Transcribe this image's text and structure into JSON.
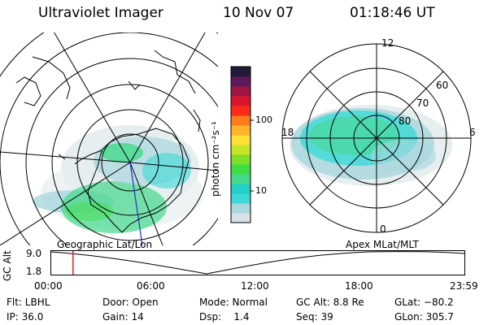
{
  "header": {
    "instrument": "Ultraviolet Imager",
    "date": "10 Nov 07",
    "time": "01:18:46 UT"
  },
  "colorbar": {
    "label": "photon cm⁻²s⁻¹",
    "ticks": [
      "100",
      "10"
    ],
    "colors": [
      "#d8e2e6",
      "#a9d7dd",
      "#3cd9d6",
      "#24cfc8",
      "#43d98a",
      "#3fdd44",
      "#7fe02a",
      "#c6e62b",
      "#ffe034",
      "#ffb52a",
      "#ff7d1c",
      "#ff2a1a",
      "#d8152a",
      "#9e1744",
      "#5c1a58",
      "#241a3a"
    ]
  },
  "left_map": {
    "caption": "Geographic Lat/Lon"
  },
  "right_map": {
    "caption": "Apex MLat/MLT",
    "mlt_labels": [
      "12",
      "18",
      "6",
      "0"
    ],
    "lat_labels": [
      "60",
      "70",
      "80"
    ]
  },
  "timeline": {
    "axis_label": "GC Alt",
    "ymax": "9.0",
    "ymin": "1.8",
    "ticks": [
      "00:00",
      "06:00",
      "12:00",
      "18:00",
      "23:59"
    ],
    "current_time_hours": 1.31,
    "marker_color": "#e02020"
  },
  "info": {
    "flt": "Flt: LBHL",
    "ip": "IP: 36.0",
    "door": "Door: Open",
    "gain": "Gain: 14",
    "mode": "Mode: Normal",
    "dsp": "Dsp:    1.4",
    "gcalt": "GC Alt: 8.8 Re",
    "seq": "Seq: 39",
    "glat": "GLat: −80.2",
    "glon": "GLon: 305.7"
  }
}
